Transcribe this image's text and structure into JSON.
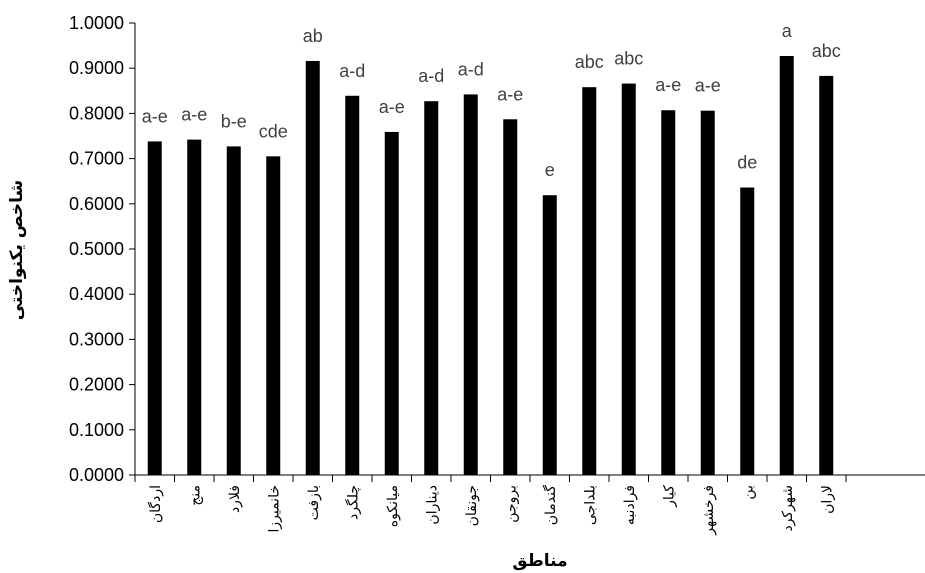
{
  "chart_data": {
    "type": "bar",
    "title": "",
    "xlabel": "مناطق",
    "ylabel": "شاخص یکنواختی",
    "ylim": [
      0,
      1
    ],
    "yticks": [
      "0.0000",
      "0.1000",
      "0.2000",
      "0.3000",
      "0.4000",
      "0.5000",
      "0.6000",
      "0.7000",
      "0.8000",
      "0.9000",
      "1.0000"
    ],
    "grid": false,
    "legend": "none",
    "bar_color": "#000000",
    "label_color": "#404040",
    "categories": [
      "اردگان",
      "منج",
      "فلارد",
      "خانمیرزا",
      "بازفت",
      "چلگرد",
      "میانکوه",
      "دیناران",
      "جونقان",
      "بروجن",
      "گندمان",
      "بلداجی",
      "فرادنبه",
      "کیار",
      "فرخشهر",
      "بن",
      "شهرکرد",
      "لاران"
    ],
    "values": [
      0.738,
      0.742,
      0.727,
      0.705,
      0.916,
      0.839,
      0.759,
      0.827,
      0.842,
      0.787,
      0.619,
      0.858,
      0.866,
      0.807,
      0.806,
      0.636,
      0.927,
      0.883
    ],
    "significance_labels": [
      "a-e",
      "a-e",
      "b-e",
      "cde",
      "ab",
      "a-d",
      "a-e",
      "a-d",
      "a-d",
      "a-e",
      "e",
      "abc",
      "abc",
      "a-e",
      "a-e",
      "de",
      "a",
      "abc"
    ]
  }
}
